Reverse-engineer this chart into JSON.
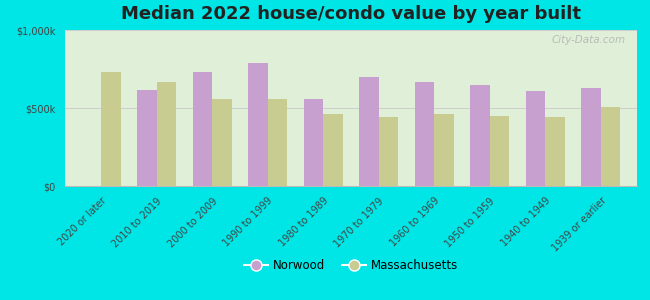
{
  "title": "Median 2022 house/condo value by year built",
  "categories": [
    "2020 or later",
    "2010 to 2019",
    "2000 to 2009",
    "1990 to 1999",
    "1980 to 1989",
    "1970 to 1979",
    "1960 to 1969",
    "1950 to 1959",
    "1940 to 1949",
    "1939 or earlier"
  ],
  "norwood_values": [
    0,
    615000,
    730000,
    790000,
    555000,
    700000,
    665000,
    650000,
    610000,
    630000
  ],
  "massachusetts_values": [
    730000,
    665000,
    555000,
    555000,
    460000,
    445000,
    460000,
    450000,
    445000,
    505000
  ],
  "norwood_color": "#c8a0d0",
  "massachusetts_color": "#c8cc90",
  "background_outer": "#00e5e5",
  "background_inner_bottom": "#e8f5e0",
  "background_inner_top": "#d8ecd0",
  "ylim": [
    0,
    1000000
  ],
  "ytick_labels": [
    "$0",
    "$500k",
    "$1,000k"
  ],
  "ytick_values": [
    0,
    500000,
    1000000
  ],
  "legend_labels": [
    "Norwood",
    "Massachusetts"
  ],
  "bar_width": 0.35,
  "title_fontsize": 13,
  "tick_fontsize": 7,
  "watermark": "City-Data.com"
}
